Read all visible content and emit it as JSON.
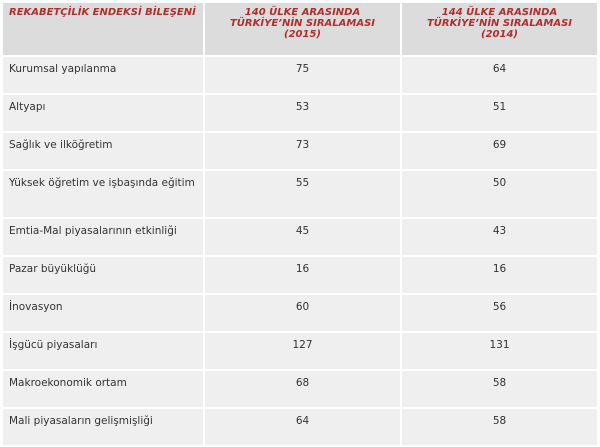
{
  "table": {
    "header": [
      "REKABETÇİLİK ENDEKSİ BİLEŞENİ",
      "140 ÜLKE ARASINDA TÜRKİYE’NİN SIRALAMASI (2015)",
      "144 ÜLKE ARASINDA TÜRKİYE’NİN SIRALAMASI (2014)"
    ],
    "rows": [
      [
        "Kurumsal yapılanma",
        75,
        64
      ],
      [
        "Altyapı",
        53,
        51
      ],
      [
        "Sağlık ve ilköğretim",
        73,
        69
      ],
      [
        "Yüksek öğretim ve işbaşında eğitim",
        55,
        50
      ],
      [
        "Emtia-Mal piyasalarının etkinliği",
        45,
        43
      ],
      [
        "Pazar büyüklüğü",
        16,
        16
      ],
      [
        "İnovasyon",
        60,
        56
      ],
      [
        "İşgücü piyasaları",
        127,
        131
      ],
      [
        "Makroekonomik ortam",
        68,
        58
      ],
      [
        "Mali piyasaların gelişmişliği",
        64,
        58
      ]
    ]
  }
}
